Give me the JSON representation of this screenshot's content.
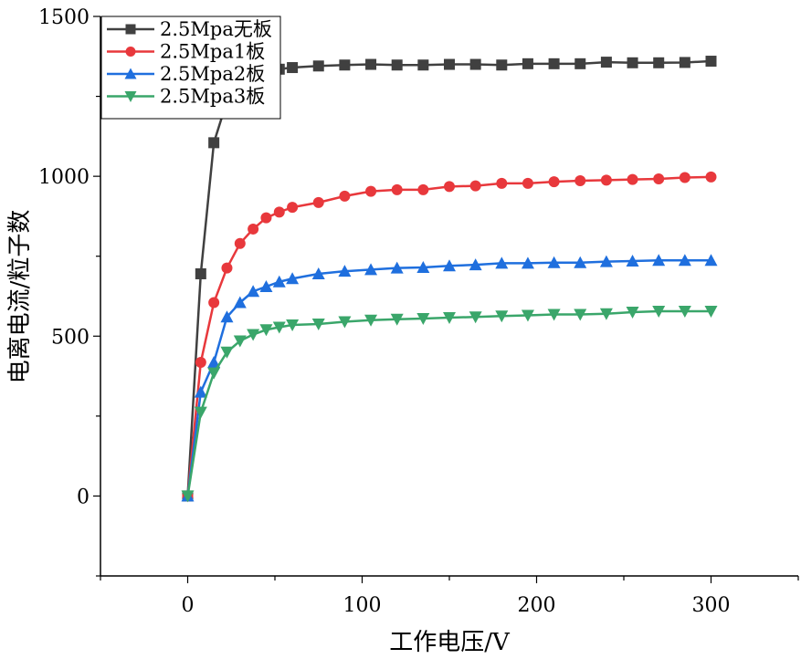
{
  "chart_data": {
    "type": "line",
    "title": "",
    "xlabel": "工作电压/V",
    "ylabel": "电离电流/粒子数",
    "xlim": [
      -50,
      350
    ],
    "ylim": [
      -250,
      1500
    ],
    "xticks": [
      0,
      100,
      200,
      300
    ],
    "xtick_labels": [
      "0",
      "100",
      "200",
      "300"
    ],
    "yticks": [
      0,
      500,
      1000,
      1500
    ],
    "ytick_labels": [
      "0",
      "500",
      "1000",
      "1500"
    ],
    "grid": false,
    "legend_position": "top-left",
    "x": [
      0,
      7.5,
      15,
      22.5,
      30,
      37.5,
      45,
      52.5,
      60,
      75,
      90,
      105,
      120,
      135,
      150,
      165,
      180,
      195,
      210,
      225,
      240,
      255,
      270,
      285,
      300
    ],
    "series": [
      {
        "name": "2.5Mpa无板",
        "color": "#404040",
        "marker": "square",
        "values": [
          0,
          695,
          1105,
          1235,
          1275,
          1320,
          1330,
          1335,
          1340,
          1345,
          1348,
          1350,
          1348,
          1348,
          1350,
          1350,
          1348,
          1352,
          1352,
          1352,
          1357,
          1355,
          1355,
          1356,
          1360
        ]
      },
      {
        "name": "2.5Mpa1板",
        "color": "#e8383c",
        "marker": "circle",
        "values": [
          0,
          418,
          605,
          713,
          790,
          835,
          870,
          888,
          903,
          918,
          938,
          953,
          958,
          958,
          968,
          970,
          978,
          978,
          983,
          986,
          988,
          990,
          992,
          996,
          998
        ]
      },
      {
        "name": "2.5Mpa2板",
        "color": "#1f6fde",
        "marker": "triangle-up",
        "values": [
          0,
          325,
          418,
          560,
          605,
          640,
          655,
          670,
          680,
          695,
          703,
          708,
          713,
          715,
          720,
          723,
          728,
          728,
          730,
          730,
          733,
          735,
          737,
          737,
          737
        ]
      },
      {
        "name": "2.5Mpa3板",
        "color": "#3aa66a",
        "marker": "triangle-down",
        "values": [
          0,
          262,
          385,
          450,
          485,
          505,
          520,
          528,
          535,
          538,
          545,
          550,
          553,
          555,
          558,
          560,
          563,
          565,
          568,
          568,
          570,
          575,
          578,
          578,
          578
        ]
      }
    ]
  }
}
